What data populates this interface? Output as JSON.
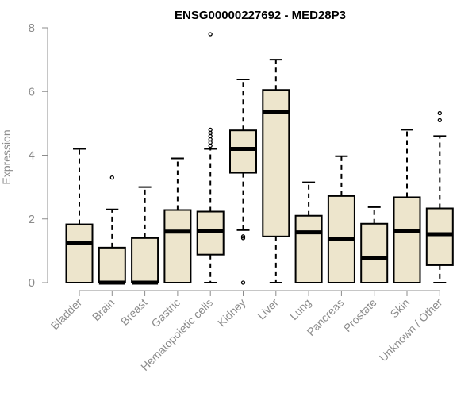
{
  "chart_data": {
    "type": "box",
    "title": "ENSG00000227692 - MED28P3",
    "xlabel": "",
    "ylabel": "Expression",
    "ylim": [
      0,
      8
    ],
    "yticks": [
      0,
      2,
      4,
      6,
      8
    ],
    "grid": false,
    "box_fill": "#ede5cc",
    "axis_color": "#8c8c8c",
    "categories": [
      "Bladder",
      "Brain",
      "Breast",
      "Gastric",
      "Hematopoietic cells",
      "Kidney",
      "Liver",
      "Lung",
      "Pancreas",
      "Prostate",
      "Skin",
      "Unknown / Other"
    ],
    "boxes": [
      {
        "name": "Bladder",
        "min": 0,
        "q1": 0,
        "median": 1.25,
        "q3": 1.83,
        "max": 4.2,
        "outliers": []
      },
      {
        "name": "Brain",
        "min": 0,
        "q1": 0,
        "median": 0,
        "q3": 1.1,
        "max": 2.3,
        "outliers": [
          3.3
        ]
      },
      {
        "name": "Breast",
        "min": 0,
        "q1": 0,
        "median": 0,
        "q3": 1.4,
        "max": 3.0,
        "outliers": []
      },
      {
        "name": "Gastric",
        "min": 0,
        "q1": 0,
        "median": 1.6,
        "q3": 2.28,
        "max": 3.9,
        "outliers": []
      },
      {
        "name": "Hematopoietic cells",
        "min": 0,
        "q1": 0.88,
        "median": 1.63,
        "q3": 2.23,
        "max": 4.2,
        "outliers": [
          4.3,
          4.4,
          4.5,
          4.6,
          4.7,
          4.8,
          7.8
        ]
      },
      {
        "name": "Kidney",
        "min": 1.65,
        "q1": 3.45,
        "median": 4.2,
        "q3": 4.78,
        "max": 6.38,
        "outliers": [
          1.4,
          1.45,
          0
        ]
      },
      {
        "name": "Liver",
        "min": 0,
        "q1": 1.45,
        "median": 5.35,
        "q3": 6.05,
        "max": 7.0,
        "outliers": []
      },
      {
        "name": "Lung",
        "min": 0,
        "q1": 0,
        "median": 1.58,
        "q3": 2.1,
        "max": 3.15,
        "outliers": []
      },
      {
        "name": "Pancreas",
        "min": 0,
        "q1": 0,
        "median": 1.38,
        "q3": 2.72,
        "max": 3.97,
        "outliers": []
      },
      {
        "name": "Prostate",
        "min": 0,
        "q1": 0,
        "median": 0.77,
        "q3": 1.85,
        "max": 2.37,
        "outliers": []
      },
      {
        "name": "Skin",
        "min": 0,
        "q1": 0,
        "median": 1.63,
        "q3": 2.68,
        "max": 4.8,
        "outliers": []
      },
      {
        "name": "Unknown / Other",
        "min": 0,
        "q1": 0.55,
        "median": 1.52,
        "q3": 2.33,
        "max": 4.6,
        "outliers": [
          5.1,
          5.32
        ]
      }
    ]
  }
}
